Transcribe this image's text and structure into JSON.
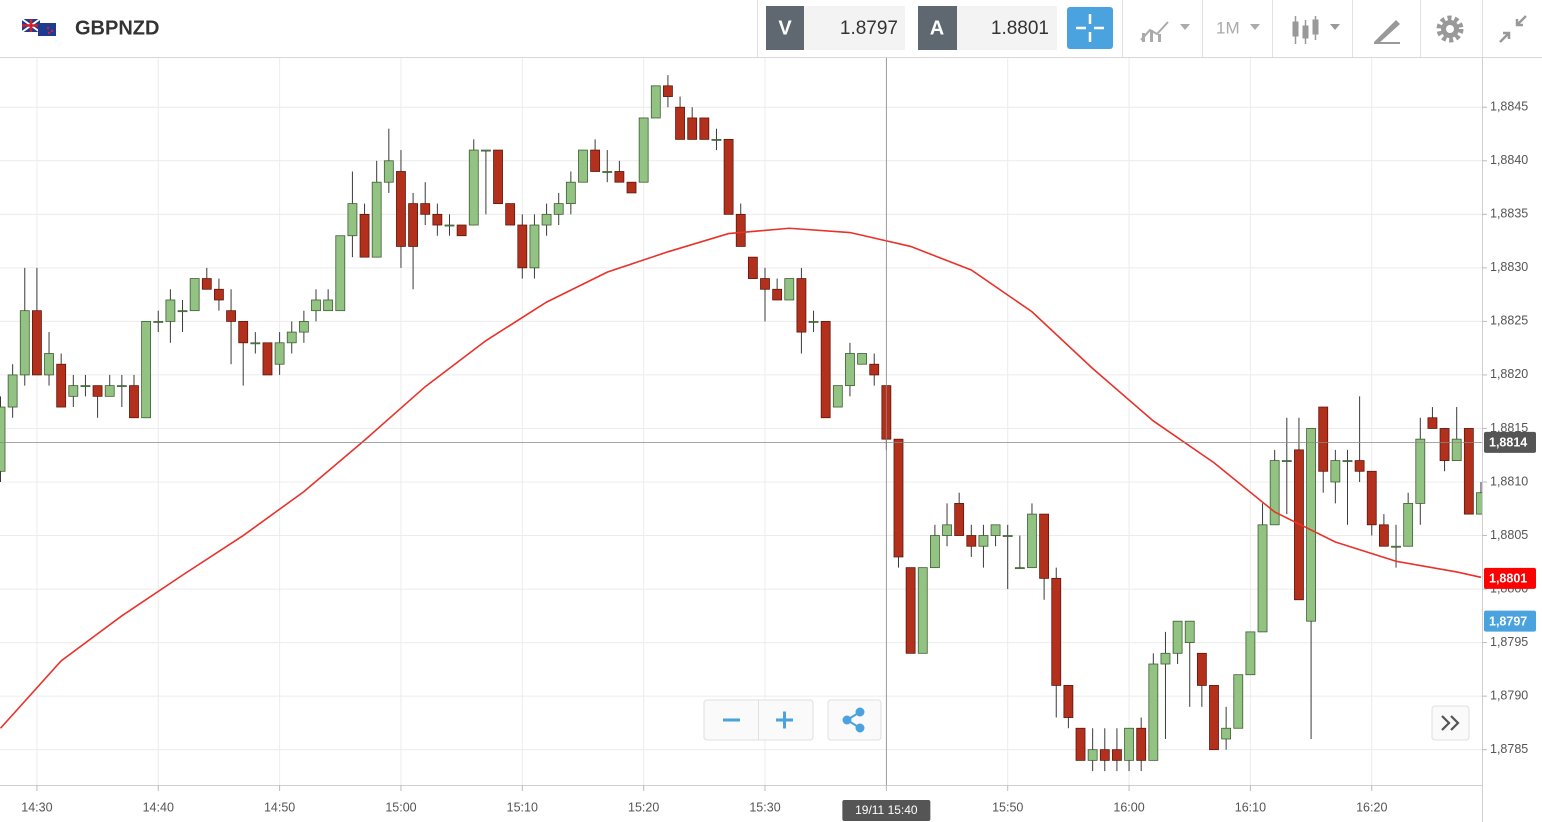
{
  "chart_data": {
    "type": "candlestick",
    "title": "GBPNZD",
    "timeframe": "1M",
    "bid": {
      "label": "V",
      "value": 1.8797,
      "axis_label": "1,8797",
      "color": "#4aa3df"
    },
    "ask": {
      "label": "A",
      "value": 1.8801,
      "axis_label": "1,8801",
      "color": "#ff0000"
    },
    "crosshair": {
      "x": "15:40",
      "x_label": "19/11 15:40",
      "y": 1.88137,
      "y_label": "1,8814"
    },
    "up_color": "#93c383",
    "down_color": "#b3301c",
    "x": [
      "14:27",
      "14:28",
      "14:29",
      "14:30",
      "14:31",
      "14:32",
      "14:33",
      "14:34",
      "14:35",
      "14:36",
      "14:37",
      "14:38",
      "14:39",
      "14:40",
      "14:41",
      "14:42",
      "14:43",
      "14:44",
      "14:45",
      "14:46",
      "14:47",
      "14:48",
      "14:49",
      "14:50",
      "14:51",
      "14:52",
      "14:53",
      "14:54",
      "14:55",
      "14:56",
      "14:57",
      "14:58",
      "14:59",
      "15:00",
      "15:01",
      "15:02",
      "15:03",
      "15:04",
      "15:05",
      "15:06",
      "15:07",
      "15:08",
      "15:09",
      "15:10",
      "15:11",
      "15:12",
      "15:13",
      "15:14",
      "15:15",
      "15:16",
      "15:17",
      "15:18",
      "15:19",
      "15:20",
      "15:21",
      "15:22",
      "15:23",
      "15:24",
      "15:25",
      "15:26",
      "15:27",
      "15:28",
      "15:29",
      "15:30",
      "15:31",
      "15:32",
      "15:33",
      "15:34",
      "15:35",
      "15:36",
      "15:37",
      "15:38",
      "15:39",
      "15:40",
      "15:41",
      "15:42",
      "15:43",
      "15:44",
      "15:45",
      "15:46",
      "15:47",
      "15:48",
      "15:49",
      "15:50",
      "15:51",
      "15:52",
      "15:53",
      "15:54",
      "15:55",
      "15:56",
      "15:57",
      "15:58",
      "15:59",
      "16:00",
      "16:01",
      "16:02",
      "16:03",
      "16:04",
      "16:05",
      "16:06",
      "16:07",
      "16:08",
      "16:09",
      "16:10",
      "16:11",
      "16:12",
      "16:13",
      "16:14",
      "16:15",
      "16:16",
      "16:17",
      "16:18",
      "16:19",
      "16:20",
      "16:21",
      "16:22",
      "16:23",
      "16:24",
      "16:25",
      "16:26",
      "16:27",
      "16:28",
      "16:29"
    ],
    "open": [
      1.8811,
      1.8817,
      1.882,
      1.8826,
      1.882,
      1.8821,
      1.8818,
      1.8819,
      1.8819,
      1.8818,
      1.8819,
      1.8819,
      1.8816,
      1.8825,
      1.8825,
      1.8826,
      1.8826,
      1.8829,
      1.8828,
      1.8826,
      1.8825,
      1.8823,
      1.8823,
      1.8821,
      1.8823,
      1.8824,
      1.8826,
      1.8826,
      1.8826,
      1.8833,
      1.8835,
      1.8831,
      1.8838,
      1.8839,
      1.8836,
      1.8836,
      1.8835,
      1.8834,
      1.8834,
      1.8834,
      1.8841,
      1.8841,
      1.8836,
      1.8834,
      1.883,
      1.8834,
      1.8835,
      1.8836,
      1.8838,
      1.8841,
      1.8839,
      1.8839,
      1.8838,
      1.8838,
      1.8844,
      1.8847,
      1.8845,
      1.8844,
      1.8844,
      1.8842,
      1.8842,
      1.8835,
      1.8831,
      1.8829,
      1.8828,
      1.8827,
      1.8829,
      1.8825,
      1.8825,
      1.8817,
      1.8819,
      1.8821,
      1.8821,
      1.8819,
      1.8814,
      1.8802,
      1.8794,
      1.8802,
      1.8805,
      1.8808,
      1.8805,
      1.8804,
      1.8805,
      1.8805,
      1.8802,
      1.8802,
      1.8807,
      1.8801,
      1.8791,
      1.8787,
      1.8784,
      1.8785,
      1.8785,
      1.8784,
      1.8787,
      1.8784,
      1.8793,
      1.8794,
      1.8795,
      1.8794,
      1.8791,
      1.8786,
      1.8787,
      1.8792,
      1.8796,
      1.8806,
      1.8812,
      1.8813,
      1.8797,
      1.8817,
      1.881,
      1.8812,
      1.8812,
      1.8811,
      1.8806,
      1.8804,
      1.8804,
      1.8808,
      1.8816,
      1.8815,
      1.8812,
      1.8815,
      1.8807
    ],
    "high": [
      1.8818,
      1.8821,
      1.883,
      1.883,
      1.8824,
      1.8822,
      1.882,
      1.882,
      1.8819,
      1.882,
      1.882,
      1.882,
      1.8825,
      1.8826,
      1.8828,
      1.8827,
      1.8829,
      1.883,
      1.8829,
      1.8828,
      1.8825,
      1.8824,
      1.8823,
      1.8824,
      1.8825,
      1.8826,
      1.8828,
      1.8828,
      1.8833,
      1.8839,
      1.8836,
      1.884,
      1.8843,
      1.8841,
      1.8837,
      1.8838,
      1.8836,
      1.8835,
      1.8834,
      1.8842,
      1.8841,
      1.8841,
      1.8836,
      1.8835,
      1.8835,
      1.8836,
      1.8837,
      1.8839,
      1.8841,
      1.8842,
      1.8841,
      1.884,
      1.8838,
      1.8844,
      1.8847,
      1.8848,
      1.8846,
      1.8845,
      1.8844,
      1.8843,
      1.8842,
      1.8836,
      1.8831,
      1.883,
      1.8829,
      1.8829,
      1.883,
      1.8826,
      1.8825,
      1.8819,
      1.8823,
      1.8822,
      1.8822,
      1.8819,
      1.8814,
      1.8802,
      1.8802,
      1.8806,
      1.8808,
      1.8809,
      1.8806,
      1.8806,
      1.8806,
      1.8806,
      1.8805,
      1.8808,
      1.8807,
      1.8802,
      1.8791,
      1.8787,
      1.8787,
      1.8787,
      1.8787,
      1.8787,
      1.8788,
      1.8794,
      1.8796,
      1.8797,
      1.8797,
      1.8794,
      1.8791,
      1.8789,
      1.8792,
      1.8796,
      1.8808,
      1.8813,
      1.8816,
      1.8816,
      1.8815,
      1.8817,
      1.8813,
      1.8813,
      1.8818,
      1.8811,
      1.8807,
      1.8806,
      1.8809,
      1.8816,
      1.8817,
      1.8815,
      1.8817,
      1.8815,
      1.881
    ],
    "low": [
      1.881,
      1.8816,
      1.8819,
      1.882,
      1.8819,
      1.8817,
      1.8817,
      1.8818,
      1.8816,
      1.8818,
      1.8817,
      1.8816,
      1.8816,
      1.8824,
      1.8823,
      1.8824,
      1.8826,
      1.8828,
      1.8826,
      1.8821,
      1.8819,
      1.8822,
      1.882,
      1.882,
      1.8822,
      1.8823,
      1.8825,
      1.8826,
      1.8826,
      1.8831,
      1.8831,
      1.8831,
      1.8837,
      1.883,
      1.8828,
      1.8834,
      1.8833,
      1.8833,
      1.8833,
      1.8834,
      1.8835,
      1.8836,
      1.8834,
      1.8829,
      1.8829,
      1.8833,
      1.8834,
      1.8835,
      1.8838,
      1.8839,
      1.8838,
      1.8838,
      1.8837,
      1.8838,
      1.8844,
      1.8845,
      1.8842,
      1.8842,
      1.8842,
      1.8841,
      1.8835,
      1.8832,
      1.8829,
      1.8825,
      1.8827,
      1.8827,
      1.8822,
      1.8824,
      1.8816,
      1.8817,
      1.8818,
      1.8821,
      1.8819,
      1.8813,
      1.8802,
      1.8794,
      1.8794,
      1.8802,
      1.8804,
      1.8805,
      1.8803,
      1.8802,
      1.8804,
      1.88,
      1.8802,
      1.8802,
      1.8799,
      1.8788,
      1.8787,
      1.8784,
      1.8783,
      1.8783,
      1.8783,
      1.8783,
      1.8783,
      1.8784,
      1.8786,
      1.8793,
      1.8789,
      1.8789,
      1.8785,
      1.8785,
      1.8787,
      1.8792,
      1.8796,
      1.8806,
      1.8807,
      1.8799,
      1.8786,
      1.8809,
      1.8808,
      1.8806,
      1.881,
      1.8805,
      1.8804,
      1.8802,
      1.8804,
      1.8806,
      1.8815,
      1.8811,
      1.8812,
      1.8807,
      1.8807
    ],
    "close": [
      1.8817,
      1.882,
      1.8826,
      1.882,
      1.8822,
      1.8817,
      1.8819,
      1.8819,
      1.8818,
      1.8819,
      1.8819,
      1.8816,
      1.8825,
      1.8825,
      1.8827,
      1.8826,
      1.8829,
      1.8828,
      1.8827,
      1.8825,
      1.8823,
      1.8823,
      1.882,
      1.8823,
      1.8824,
      1.8825,
      1.8827,
      1.8827,
      1.8833,
      1.8836,
      1.8831,
      1.8838,
      1.884,
      1.8832,
      1.8832,
      1.8835,
      1.8834,
      1.8834,
      1.8833,
      1.8841,
      1.8841,
      1.8836,
      1.8834,
      1.883,
      1.8834,
      1.8835,
      1.8836,
      1.8838,
      1.8841,
      1.8839,
      1.8839,
      1.8838,
      1.8837,
      1.8844,
      1.8847,
      1.8846,
      1.8842,
      1.8842,
      1.8842,
      1.8842,
      1.8835,
      1.8832,
      1.8829,
      1.8828,
      1.8827,
      1.8829,
      1.8824,
      1.8825,
      1.8816,
      1.8819,
      1.8822,
      1.8822,
      1.882,
      1.8814,
      1.8803,
      1.8794,
      1.8802,
      1.8805,
      1.8806,
      1.8805,
      1.8804,
      1.8805,
      1.8806,
      1.8805,
      1.8802,
      1.8807,
      1.8801,
      1.8791,
      1.8788,
      1.8784,
      1.8785,
      1.8784,
      1.8784,
      1.8787,
      1.8784,
      1.8793,
      1.8794,
      1.8797,
      1.8797,
      1.8791,
      1.8785,
      1.8787,
      1.8792,
      1.8796,
      1.8806,
      1.8812,
      1.8812,
      1.8799,
      1.8815,
      1.8811,
      1.8812,
      1.8812,
      1.8811,
      1.8806,
      1.8804,
      1.8804,
      1.8808,
      1.8814,
      1.8815,
      1.8812,
      1.8814,
      1.8807,
      1.8809
    ],
    "moving_average": {
      "color": "#e8322a",
      "x": [
        "14:27",
        "14:32",
        "14:37",
        "14:42",
        "14:47",
        "14:52",
        "14:57",
        "15:02",
        "15:07",
        "15:12",
        "15:17",
        "15:22",
        "15:27",
        "15:32",
        "15:37",
        "15:42",
        "15:47",
        "15:52",
        "15:57",
        "16:02",
        "16:07",
        "16:12",
        "16:17",
        "16:22",
        "16:27",
        "16:29"
      ],
      "values": [
        1.8787,
        1.87933,
        1.87975,
        1.88013,
        1.8805,
        1.88091,
        1.88139,
        1.88189,
        1.88232,
        1.88268,
        1.88296,
        1.88315,
        1.88332,
        1.88337,
        1.88333,
        1.8832,
        1.88298,
        1.88259,
        1.88206,
        1.88157,
        1.88118,
        1.88072,
        1.88044,
        1.88026,
        1.88016,
        1.88011
      ]
    },
    "ylim": [
      1.87817,
      1.88496
    ],
    "yticks": [
      {
        "value": 1.8785,
        "label": "1,8785"
      },
      {
        "value": 1.879,
        "label": "1,8790"
      },
      {
        "value": 1.8795,
        "label": "1,8795"
      },
      {
        "value": 1.88,
        "label": "1,8800"
      },
      {
        "value": 1.8805,
        "label": "1,8805"
      },
      {
        "value": 1.881,
        "label": "1,8810"
      },
      {
        "value": 1.8815,
        "label": "1,8815"
      },
      {
        "value": 1.882,
        "label": "1,8820"
      },
      {
        "value": 1.8825,
        "label": "1,8825"
      },
      {
        "value": 1.883,
        "label": "1,8830"
      },
      {
        "value": 1.8835,
        "label": "1,8835"
      },
      {
        "value": 1.884,
        "label": "1,8840"
      },
      {
        "value": 1.8845,
        "label": "1,8845"
      }
    ],
    "xticks": [
      "14:30",
      "14:40",
      "14:50",
      "15:00",
      "15:10",
      "15:20",
      "15:30",
      "15:40",
      "15:50",
      "16:00",
      "16:10",
      "16:20"
    ],
    "grid": true
  }
}
